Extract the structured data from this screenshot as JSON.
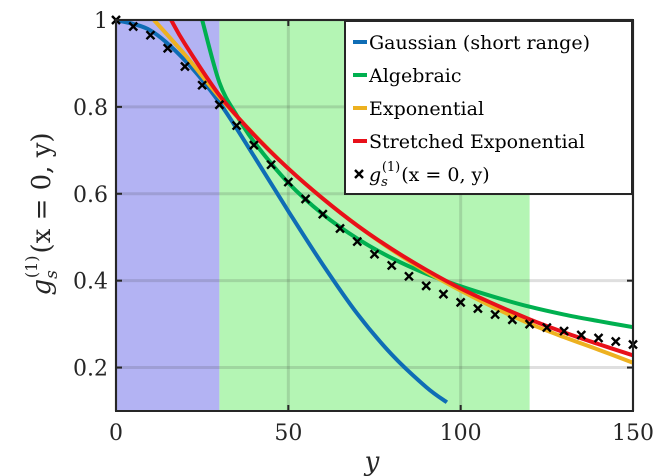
{
  "chart_data": {
    "type": "line",
    "xlabel": "y",
    "ylabel": "g_s^(1)(x = 0, y)",
    "ylabel_parts": {
      "g": "g",
      "sub": "s",
      "sup": "(1)",
      "args": "(x = 0, y)"
    },
    "xlim": [
      0,
      150
    ],
    "ylim": [
      0.1,
      1.0
    ],
    "xticks": [
      "0",
      "50",
      "100",
      "150"
    ],
    "yticks": [
      "0.2",
      "0.4",
      "0.6",
      "0.8",
      "1"
    ],
    "xtick_values": [
      0,
      50,
      100,
      150
    ],
    "ytick_values": [
      0.2,
      0.4,
      0.6,
      0.8,
      1.0
    ],
    "grid": true,
    "legend_position": "top-right",
    "shaded_regions": [
      {
        "x": [
          0,
          30
        ],
        "color": "#b3b3f3"
      },
      {
        "x": [
          30,
          120
        ],
        "color": "#b4f5b4"
      }
    ],
    "series": [
      {
        "name": "Gaussian (short range)",
        "color": "#0f6db5",
        "x": [
          0,
          10,
          20,
          30,
          40,
          50,
          60,
          70,
          80,
          90,
          96
        ],
        "y": [
          1.0,
          0.976,
          0.907,
          0.81,
          0.687,
          0.56,
          0.437,
          0.324,
          0.23,
          0.155,
          0.12
        ]
      },
      {
        "name": "Algebraic",
        "color": "#00b050",
        "x": [
          25,
          30,
          35,
          40,
          50,
          60,
          70,
          80,
          90,
          100,
          110,
          120,
          130,
          140,
          150
        ],
        "y": [
          1.0,
          0.856,
          0.781,
          0.72,
          0.625,
          0.553,
          0.497,
          0.452,
          0.416,
          0.387,
          0.362,
          0.34,
          0.322,
          0.307,
          0.293
        ]
      },
      {
        "name": "Exponential",
        "color": "#edb120",
        "x": [
          11,
          20,
          30,
          40,
          50,
          60,
          70,
          80,
          90,
          100,
          110,
          120,
          130,
          140,
          150
        ],
        "y": [
          1.0,
          0.92,
          0.823,
          0.737,
          0.658,
          0.589,
          0.527,
          0.471,
          0.421,
          0.377,
          0.337,
          0.301,
          0.27,
          0.241,
          0.211
        ]
      },
      {
        "name": "Stretched Exponential",
        "color": "#e8101a",
        "x": [
          16,
          20,
          30,
          40,
          50,
          60,
          70,
          80,
          90,
          100,
          110,
          120,
          130,
          140,
          150
        ],
        "y": [
          1.0,
          0.945,
          0.827,
          0.736,
          0.658,
          0.589,
          0.527,
          0.473,
          0.425,
          0.382,
          0.345,
          0.311,
          0.281,
          0.254,
          0.228
        ]
      },
      {
        "name": "g_s^(1)(x = 0, y)",
        "marker": "x",
        "color": "#000000",
        "x": [
          0,
          5,
          10,
          15,
          20,
          25,
          30,
          35,
          40,
          45,
          50,
          55,
          60,
          65,
          70,
          75,
          80,
          85,
          90,
          95,
          100,
          105,
          110,
          115,
          120,
          125,
          130,
          135,
          140,
          145,
          150
        ],
        "y": [
          1.0,
          0.985,
          0.965,
          0.935,
          0.893,
          0.85,
          0.805,
          0.757,
          0.712,
          0.667,
          0.627,
          0.588,
          0.553,
          0.52,
          0.49,
          0.461,
          0.435,
          0.41,
          0.388,
          0.369,
          0.35,
          0.336,
          0.322,
          0.31,
          0.3,
          0.292,
          0.284,
          0.275,
          0.268,
          0.26,
          0.253
        ]
      }
    ]
  }
}
